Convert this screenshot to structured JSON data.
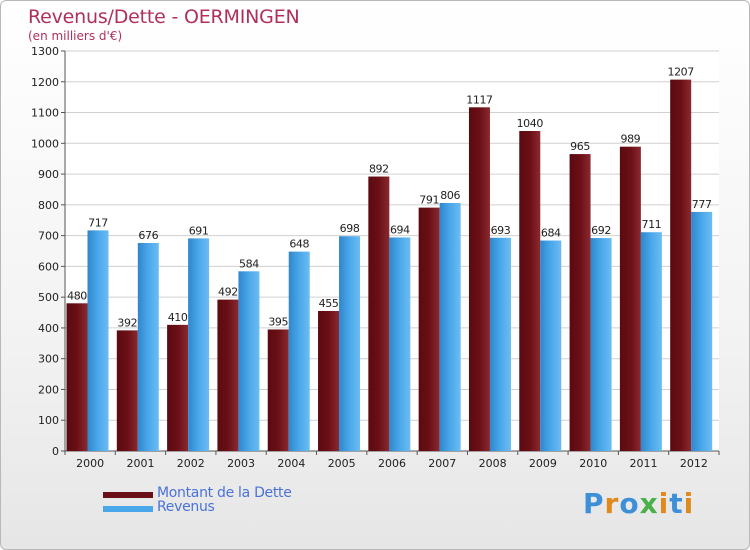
{
  "title": "Revenus/Dette - OERMINGEN",
  "subtitle": "(en milliers d'€)",
  "logo": {
    "text": "Proxiti",
    "letter_colors": [
      "#3d8fd8",
      "#e08a1e",
      "#3d8fd8",
      "#4ab04a",
      "#e08a1e",
      "#3d8fd8",
      "#e08a1e"
    ]
  },
  "colors": {
    "debt": "#6b0f16",
    "revenue": "#4aa8ea",
    "grid": "#d0d0d0",
    "axis_text": "#222222",
    "title": "#b0305a",
    "legend_text": "#4a72d8"
  },
  "chart_data": {
    "type": "bar",
    "categories": [
      "2000",
      "2001",
      "2002",
      "2003",
      "2004",
      "2005",
      "2006",
      "2007",
      "2008",
      "2009",
      "2010",
      "2011",
      "2012"
    ],
    "series": [
      {
        "name": "Montant de la Dette",
        "values": [
          480,
          392,
          410,
          492,
          395,
          455,
          892,
          791,
          1117,
          1040,
          965,
          989,
          1207
        ]
      },
      {
        "name": "Revenus",
        "values": [
          717,
          676,
          691,
          584,
          648,
          698,
          694,
          806,
          693,
          684,
          692,
          711,
          777
        ]
      }
    ],
    "ylim": [
      0,
      1300
    ],
    "yticks": [
      0,
      100,
      200,
      300,
      400,
      500,
      600,
      700,
      800,
      900,
      1000,
      1100,
      1200,
      1300
    ],
    "grid": true,
    "legend_position": "bottom-left"
  }
}
